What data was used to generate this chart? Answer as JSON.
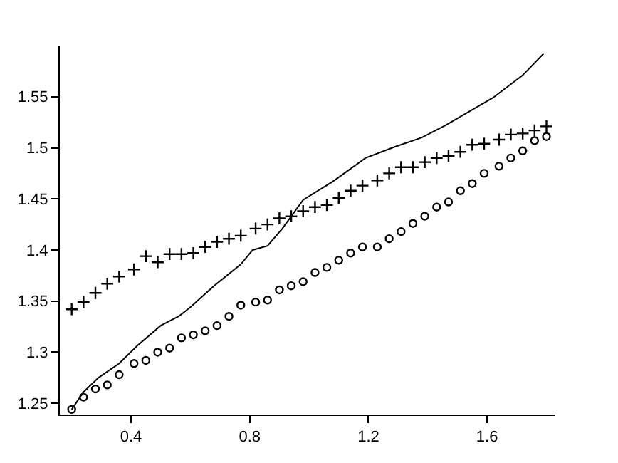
{
  "chart_data": {
    "type": "scatter",
    "xlim": [
      0.16,
      1.83
    ],
    "ylim": [
      1.239,
      1.6
    ],
    "xticks": [
      0.4,
      0.8,
      1.2,
      1.6
    ],
    "yticks": [
      1.25,
      1.3,
      1.35,
      1.4,
      1.45,
      1.5,
      1.55
    ],
    "grid": false,
    "x": [
      0.2,
      0.24,
      0.28,
      0.32,
      0.36,
      0.41,
      0.45,
      0.49,
      0.53,
      0.57,
      0.61,
      0.65,
      0.69,
      0.73,
      0.77,
      0.82,
      0.86,
      0.9,
      0.94,
      0.98,
      1.02,
      1.06,
      1.1,
      1.14,
      1.18,
      1.23,
      1.27,
      1.31,
      1.35,
      1.39,
      1.43,
      1.47,
      1.51,
      1.55,
      1.59,
      1.64,
      1.68,
      1.72,
      1.76,
      1.8
    ],
    "series": [
      {
        "marker": "circle",
        "color": "#000000",
        "values": [
          1.244,
          1.256,
          1.264,
          1.268,
          1.278,
          1.289,
          1.292,
          1.3,
          1.304,
          1.314,
          1.317,
          1.321,
          1.326,
          1.335,
          1.346,
          1.349,
          1.351,
          1.361,
          1.365,
          1.369,
          1.378,
          1.383,
          1.39,
          1.397,
          1.403,
          1.403,
          1.411,
          1.418,
          1.426,
          1.433,
          1.442,
          1.447,
          1.458,
          1.465,
          1.475,
          1.482,
          1.49,
          1.497,
          1.507,
          1.511
        ]
      },
      {
        "marker": "cross",
        "color": "#000000",
        "values": [
          1.342,
          1.349,
          1.358,
          1.367,
          1.374,
          1.381,
          1.394,
          1.388,
          1.396,
          1.396,
          1.397,
          1.403,
          1.408,
          1.411,
          1.414,
          1.421,
          1.425,
          1.431,
          1.433,
          1.438,
          1.442,
          1.444,
          1.451,
          1.458,
          1.463,
          1.468,
          1.475,
          1.481,
          1.481,
          1.486,
          1.49,
          1.492,
          1.496,
          1.503,
          1.504,
          1.508,
          1.513,
          1.514,
          1.517,
          1.521
        ]
      },
      {
        "type": "line",
        "marker": "none",
        "line_style": "solid",
        "color": "#000000",
        "x": [
          0.2,
          0.24,
          0.29,
          0.36,
          0.42,
          0.5,
          0.56,
          0.6,
          0.68,
          0.77,
          0.81,
          0.86,
          0.91,
          0.98,
          1.08,
          1.19,
          1.29,
          1.38,
          1.46,
          1.62,
          1.72,
          1.79
        ],
        "values": [
          1.244,
          1.261,
          1.275,
          1.289,
          1.306,
          1.326,
          1.335,
          1.344,
          1.365,
          1.386,
          1.4,
          1.404,
          1.421,
          1.449,
          1.467,
          1.49,
          1.501,
          1.51,
          1.522,
          1.549,
          1.571,
          1.592
        ]
      }
    ]
  }
}
